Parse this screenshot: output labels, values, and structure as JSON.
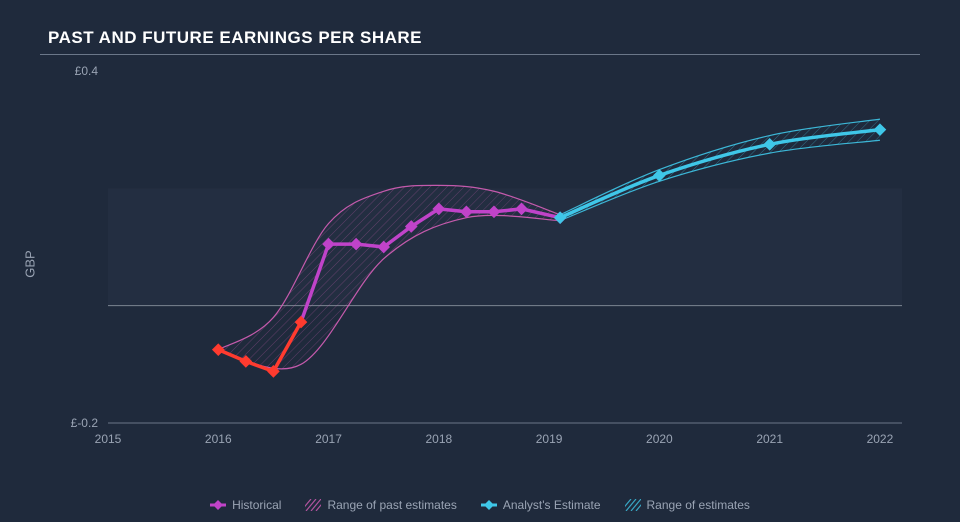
{
  "chart": {
    "type": "line",
    "title": "PAST AND FUTURE EARNINGS PER SHARE",
    "title_color": "#ffffff",
    "title_fontsize": 17,
    "background_color": "#1f2a3c",
    "plot_band_color": "#263246",
    "rule_color": "#6b7789",
    "zero_line_color": "#c7cdd6",
    "axis_font_color": "#9aa4b4",
    "y_axis": {
      "label": "GBP",
      "ticks": [
        {
          "value": -0.2,
          "label": "£-0.2"
        },
        {
          "value": 0.4,
          "label": "£0.4"
        }
      ],
      "ymin": -0.2,
      "ymax": 0.4,
      "label_fontsize": 13,
      "tick_fontsize": 12,
      "zero_line_at": 0.0
    },
    "x_axis": {
      "ticks": [
        2015,
        2016,
        2017,
        2018,
        2019,
        2020,
        2021,
        2022
      ],
      "xmin": 2015,
      "xmax": 2022.2,
      "tick_fontsize": 12
    },
    "series_historical": {
      "show_markers": true,
      "marker_shape": "diamond",
      "marker_size": 9,
      "line_width": 3.5,
      "points": [
        {
          "x": 2016.0,
          "y": -0.075,
          "color": "#ff3b2f"
        },
        {
          "x": 2016.25,
          "y": -0.095,
          "color": "#ff3b2f"
        },
        {
          "x": 2016.5,
          "y": -0.112,
          "color": "#ff3b2f"
        },
        {
          "x": 2016.75,
          "y": -0.028,
          "color": "#ff3b2f"
        },
        {
          "x": 2017.0,
          "y": 0.105,
          "color": "#c043c9"
        },
        {
          "x": 2017.25,
          "y": 0.105,
          "color": "#c043c9"
        },
        {
          "x": 2017.5,
          "y": 0.1,
          "color": "#c043c9"
        },
        {
          "x": 2017.75,
          "y": 0.135,
          "color": "#c043c9"
        },
        {
          "x": 2018.0,
          "y": 0.165,
          "color": "#c043c9"
        },
        {
          "x": 2018.25,
          "y": 0.16,
          "color": "#c043c9"
        },
        {
          "x": 2018.5,
          "y": 0.16,
          "color": "#c043c9"
        },
        {
          "x": 2018.75,
          "y": 0.165,
          "color": "#c043c9"
        },
        {
          "x": 2019.1,
          "y": 0.15,
          "color": "#c043c9"
        }
      ]
    },
    "series_past_estimate_range": {
      "color": "#d65fb8",
      "line_width": 1.2,
      "opacity": 0.9,
      "upper": [
        {
          "x": 2016.0,
          "y": -0.075
        },
        {
          "x": 2016.5,
          "y": -0.02
        },
        {
          "x": 2017.0,
          "y": 0.14
        },
        {
          "x": 2017.5,
          "y": 0.195
        },
        {
          "x": 2018.0,
          "y": 0.205
        },
        {
          "x": 2018.5,
          "y": 0.195
        },
        {
          "x": 2019.1,
          "y": 0.155
        }
      ],
      "lower": [
        {
          "x": 2016.0,
          "y": -0.075
        },
        {
          "x": 2016.75,
          "y": -0.1
        },
        {
          "x": 2017.5,
          "y": 0.08
        },
        {
          "x": 2018.25,
          "y": 0.15
        },
        {
          "x": 2019.1,
          "y": 0.145
        }
      ]
    },
    "series_analyst_estimate": {
      "color": "#3fc7e8",
      "show_markers": true,
      "marker_shape": "diamond",
      "marker_size": 9,
      "line_width": 3.5,
      "points": [
        {
          "x": 2019.1,
          "y": 0.15
        },
        {
          "x": 2020.0,
          "y": 0.222
        },
        {
          "x": 2021.0,
          "y": 0.275
        },
        {
          "x": 2022.0,
          "y": 0.3
        }
      ]
    },
    "series_estimate_range": {
      "color": "#3fc7e8",
      "line_width": 1.2,
      "opacity": 0.9,
      "hatch": "diagonal",
      "upper": [
        {
          "x": 2019.1,
          "y": 0.155
        },
        {
          "x": 2020.0,
          "y": 0.232
        },
        {
          "x": 2021.0,
          "y": 0.29
        },
        {
          "x": 2022.0,
          "y": 0.318
        }
      ],
      "lower": [
        {
          "x": 2019.1,
          "y": 0.145
        },
        {
          "x": 2020.0,
          "y": 0.212
        },
        {
          "x": 2021.0,
          "y": 0.26
        },
        {
          "x": 2022.0,
          "y": 0.282
        }
      ]
    },
    "legend": [
      {
        "swatch": "diamond",
        "color": "#c043c9",
        "label": "Historical"
      },
      {
        "swatch": "hatch",
        "color": "#d65fb8",
        "label": "Range of past estimates"
      },
      {
        "swatch": "diamond",
        "color": "#3fc7e8",
        "label": "Analyst's Estimate"
      },
      {
        "swatch": "hatch",
        "color": "#3fc7e8",
        "label": "Range of estimates"
      }
    ]
  }
}
